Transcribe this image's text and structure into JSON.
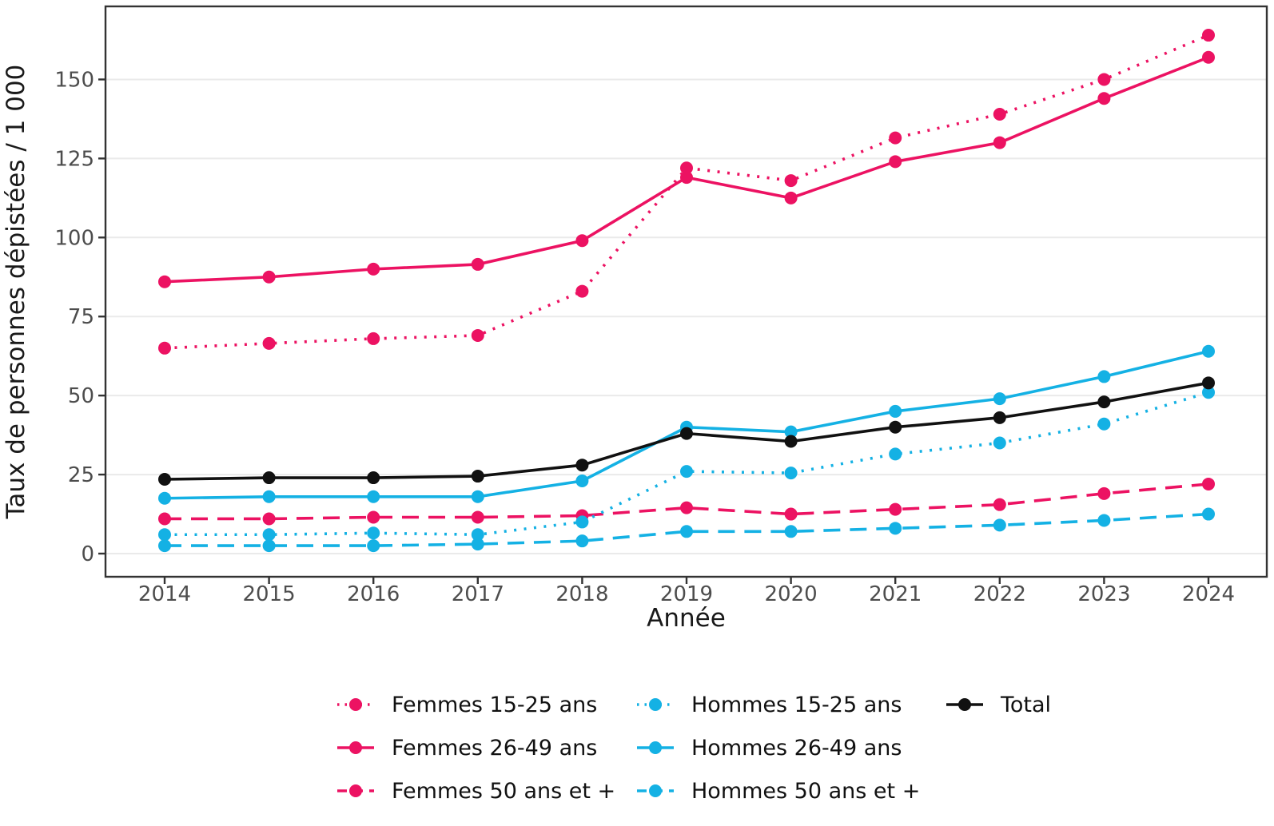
{
  "chart_data": {
    "type": "line",
    "title": "",
    "xlabel": "Année",
    "ylabel": "Taux de personnes dépistées / 1 000",
    "x": [
      2014,
      2015,
      2016,
      2017,
      2018,
      2019,
      2020,
      2021,
      2022,
      2023,
      2024
    ],
    "x_tick_labels": [
      "2014",
      "2015",
      "2016",
      "2017",
      "2018",
      "2019",
      "2020",
      "2021",
      "2022",
      "2023",
      "2024"
    ],
    "y_ticks": [
      0,
      25,
      50,
      75,
      100,
      125,
      150
    ],
    "y_tick_labels": [
      "0",
      "25",
      "50",
      "75",
      "100",
      "125",
      "150"
    ],
    "ylim": [
      -7.3,
      173.1
    ],
    "grid": "horizontal-major-only",
    "legend_position": "bottom",
    "legend_ncol": 3,
    "series": [
      {
        "name": "Femmes 15-25 ans",
        "color": "#EC1262",
        "line_style": "dotted",
        "marker": "circle",
        "values": [
          65,
          66.5,
          68,
          69,
          83,
          122,
          118,
          131.5,
          139,
          150,
          164
        ]
      },
      {
        "name": "Femmes 26-49 ans",
        "color": "#EC1262",
        "line_style": "solid",
        "marker": "circle",
        "values": [
          86,
          87.5,
          90,
          91.5,
          99,
          119,
          112.5,
          124,
          130,
          144,
          157
        ]
      },
      {
        "name": "Femmes 50 ans et +",
        "color": "#EC1262",
        "line_style": "dashed",
        "marker": "circle",
        "values": [
          11,
          11,
          11.5,
          11.5,
          12,
          14.5,
          12.5,
          14,
          15.5,
          19,
          22
        ]
      },
      {
        "name": "Hommes 15-25 ans",
        "color": "#14B1E4",
        "line_style": "dotted",
        "marker": "circle",
        "values": [
          6,
          6,
          6.5,
          6,
          10,
          26,
          25.5,
          31.5,
          35,
          41,
          51
        ]
      },
      {
        "name": "Hommes 26-49 ans",
        "color": "#14B1E4",
        "line_style": "solid",
        "marker": "circle",
        "values": [
          17.5,
          18,
          18,
          18,
          23,
          40,
          38.5,
          45,
          49,
          56,
          64
        ]
      },
      {
        "name": "Hommes 50 ans et +",
        "color": "#14B1E4",
        "line_style": "dashed",
        "marker": "circle",
        "values": [
          2.5,
          2.5,
          2.5,
          3,
          4,
          7,
          7,
          8,
          9,
          10.5,
          12.5
        ]
      },
      {
        "name": "Total",
        "color": "#111111",
        "line_style": "solid",
        "marker": "circle",
        "values": [
          23.5,
          24,
          24,
          24.5,
          28,
          38,
          35.5,
          40,
          43,
          48,
          54
        ]
      }
    ],
    "colors": {
      "femmes": "#EC1262",
      "hommes": "#14B1E4",
      "total": "#111111",
      "grid": "#EAEAEA",
      "axis_border": "#333333",
      "tick_label": "#4D4D4D",
      "axis_label": "#1A1A1A"
    }
  }
}
